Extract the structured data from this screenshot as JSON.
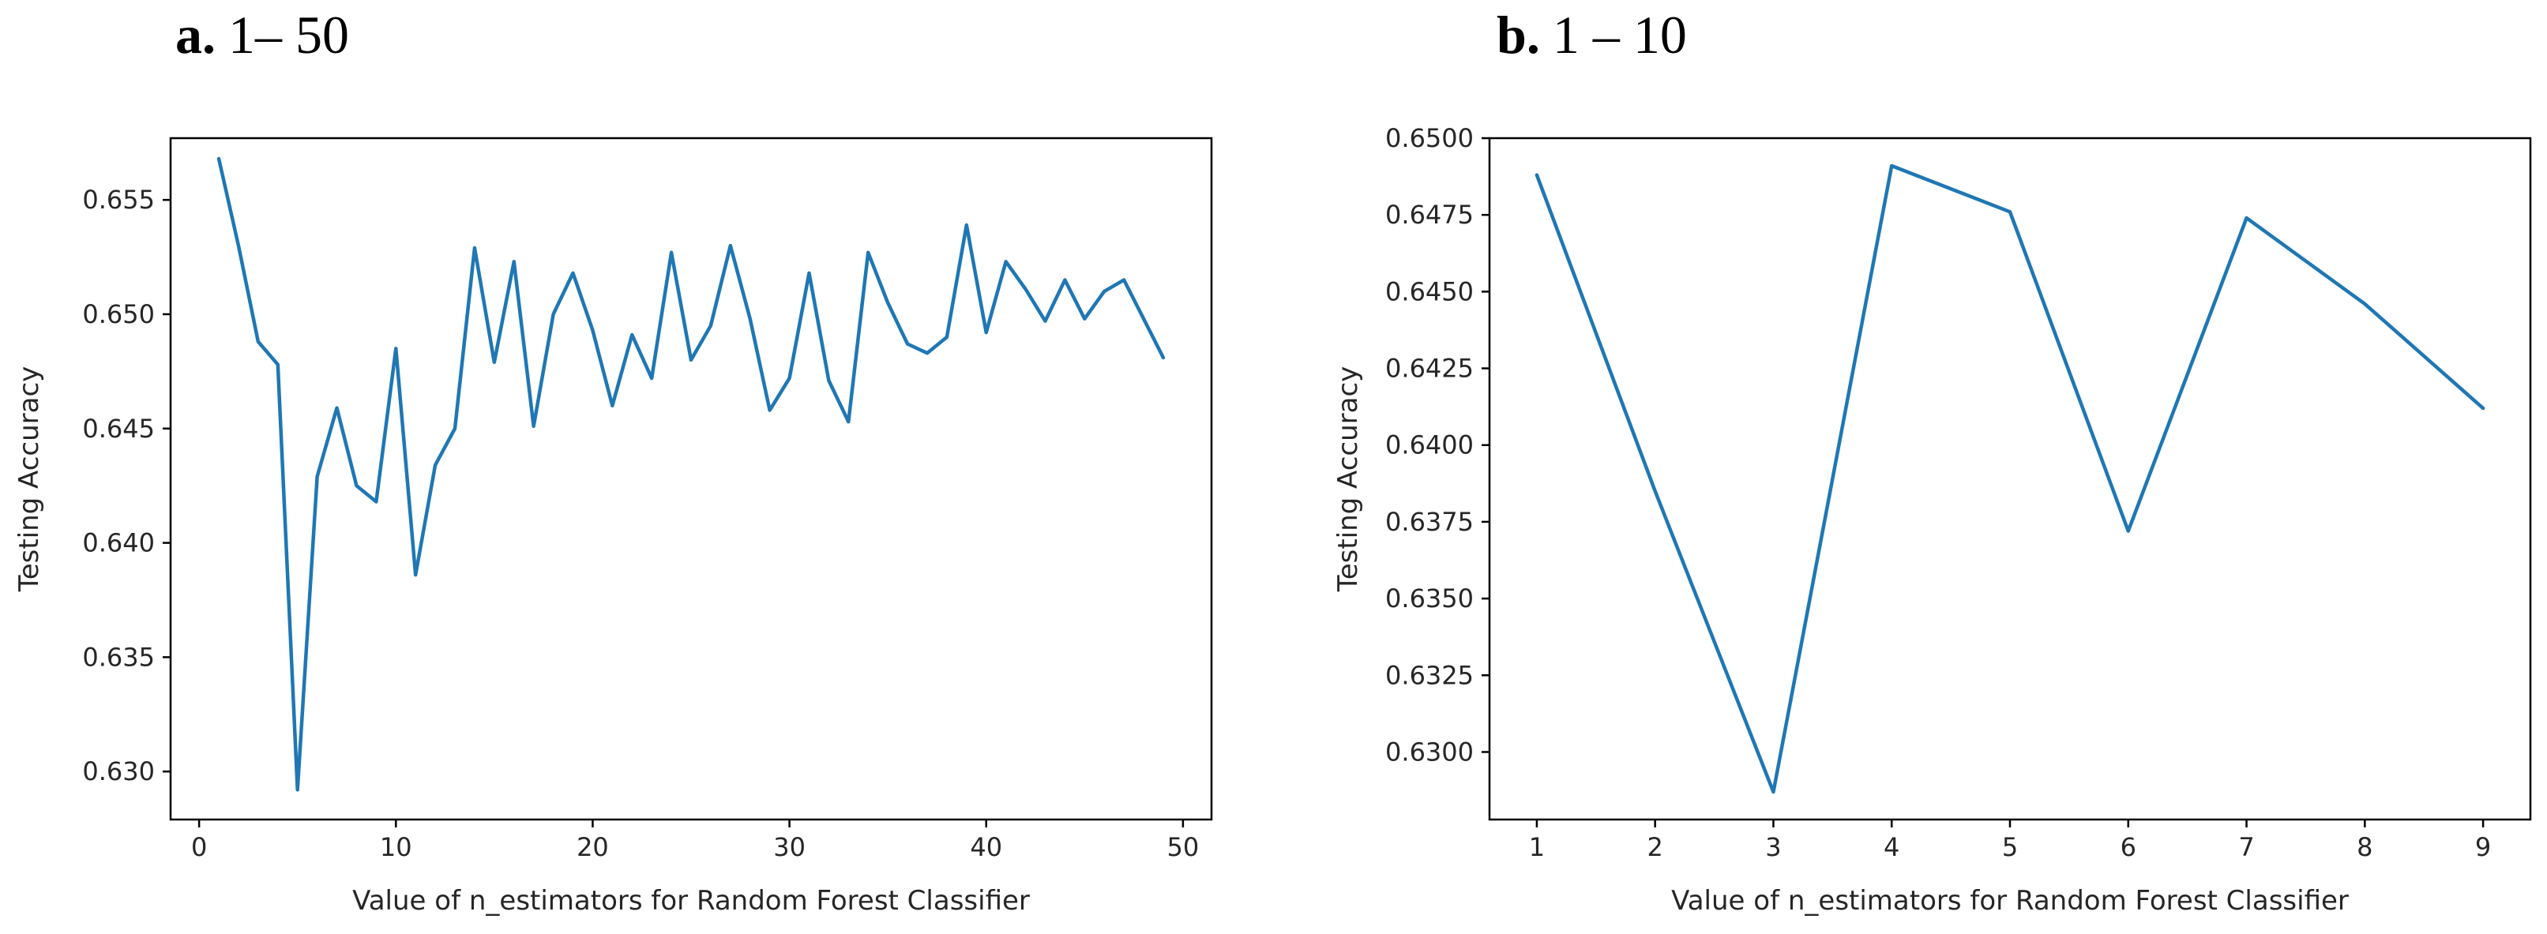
{
  "colors": {
    "series": "#1f77b4",
    "axis": "#000000",
    "text": "#262626"
  },
  "chart_data": [
    {
      "type": "line",
      "panel_letter": "a.",
      "panel_range": "1– 50",
      "xlabel": "Value of n_estimators for Random Forest Classifier",
      "ylabel": "Testing Accuracy",
      "xlim": [
        -1.45,
        51.45
      ],
      "ylim": [
        0.6279,
        0.6577
      ],
      "xticks": [
        0,
        10,
        20,
        30,
        40,
        50
      ],
      "xtick_labels": [
        "0",
        "10",
        "20",
        "30",
        "40",
        "50"
      ],
      "yticks": [
        0.63,
        0.635,
        0.64,
        0.645,
        0.65,
        0.655
      ],
      "ytick_labels": [
        "0.630",
        "0.635",
        "0.640",
        "0.645",
        "0.650",
        "0.655"
      ],
      "x": [
        1,
        2,
        3,
        4,
        5,
        6,
        7,
        8,
        9,
        10,
        11,
        12,
        13,
        14,
        15,
        16,
        17,
        18,
        19,
        20,
        21,
        22,
        23,
        24,
        25,
        26,
        27,
        28,
        29,
        30,
        31,
        32,
        33,
        34,
        35,
        36,
        37,
        38,
        39,
        40,
        41,
        42,
        43,
        44,
        45,
        46,
        47,
        48,
        49
      ],
      "y": [
        0.6568,
        0.653,
        0.6488,
        0.6478,
        0.6292,
        0.6429,
        0.6459,
        0.6425,
        0.6418,
        0.6485,
        0.6386,
        0.6434,
        0.645,
        0.6529,
        0.6479,
        0.6523,
        0.6451,
        0.65,
        0.6518,
        0.6493,
        0.646,
        0.6491,
        0.6472,
        0.6527,
        0.648,
        0.6495,
        0.653,
        0.6498,
        0.6458,
        0.6472,
        0.6518,
        0.6471,
        0.6453,
        0.6527,
        0.6505,
        0.6487,
        0.6483,
        0.649,
        0.6539,
        0.6492,
        0.6523,
        0.6511,
        0.6497,
        0.6515,
        0.6498,
        0.651,
        0.6515,
        0.6498,
        0.6481
      ]
    },
    {
      "type": "line",
      "panel_letter": "b.",
      "panel_range": "1 – 10",
      "xlabel": "Value of n_estimators for Random Forest Classifier",
      "ylabel": "Testing Accuracy",
      "xlim": [
        0.6,
        9.4
      ],
      "ylim": [
        0.6278,
        0.65
      ],
      "xticks": [
        1,
        2,
        3,
        4,
        5,
        6,
        7,
        8,
        9
      ],
      "xtick_labels": [
        "1",
        "2",
        "3",
        "4",
        "5",
        "6",
        "7",
        "8",
        "9"
      ],
      "yticks": [
        0.63,
        0.6325,
        0.635,
        0.6375,
        0.64,
        0.6425,
        0.645,
        0.6475,
        0.65
      ],
      "ytick_labels": [
        "0.6300",
        "0.6325",
        "0.6350",
        "0.6375",
        "0.6400",
        "0.6425",
        "0.6450",
        "0.6475",
        "0.6500"
      ],
      "x": [
        1,
        2,
        3,
        4,
        5,
        6,
        7,
        8,
        9
      ],
      "y": [
        0.6488,
        0.6385,
        0.6287,
        0.6491,
        0.6476,
        0.6372,
        0.6474,
        0.6446,
        0.6412
      ]
    }
  ]
}
